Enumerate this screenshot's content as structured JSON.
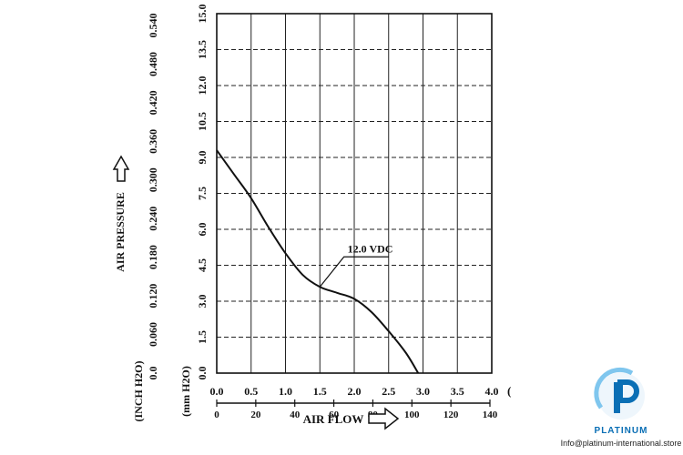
{
  "chart_data": {
    "type": "line",
    "y_label": "AIR PRESSURE",
    "y_unit_inch": "(INCH H2O)",
    "y_unit_mm": "(mm H2O)",
    "x_label": "AIR FLOW",
    "x_unit": "(",
    "y_mm_ticks": [
      "0.0",
      "1.5",
      "3.0",
      "4.5",
      "6.0",
      "7.5",
      "9.0",
      "10.5",
      "12.0",
      "13.5",
      "15.0"
    ],
    "y_inch_ticks": [
      "0.0",
      "0.060",
      "0.120",
      "0.180",
      "0.240",
      "0.300",
      "0.360",
      "0.420",
      "0.480",
      "0.540"
    ],
    "x_top_ticks": [
      "0.0",
      "0.5",
      "1.0",
      "1.5",
      "2.0",
      "2.5",
      "3.0",
      "3.5",
      "4.0"
    ],
    "x_bottom_ticks": [
      "0",
      "20",
      "40",
      "60",
      "80",
      "100",
      "120",
      "140"
    ],
    "xlim": [
      0,
      4.0
    ],
    "ylim": [
      0,
      15.0
    ],
    "grid": true,
    "series": [
      {
        "name": "12.0 VDC",
        "x": [
          0.0,
          0.25,
          0.5,
          0.75,
          1.0,
          1.25,
          1.5,
          1.75,
          2.0,
          2.25,
          2.5,
          2.75,
          2.93
        ],
        "y": [
          9.3,
          8.3,
          7.3,
          6.1,
          5.0,
          4.1,
          3.6,
          3.35,
          3.1,
          2.55,
          1.75,
          0.85,
          0.0
        ]
      }
    ]
  },
  "brand": {
    "name": "PLATINUM",
    "email": "Info@platinum-international.store",
    "primary_color": "#0a6fb5",
    "light_color": "#7fc6ee"
  }
}
